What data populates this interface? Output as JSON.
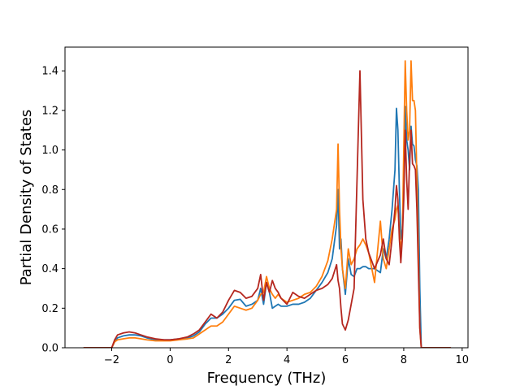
{
  "chart_data": {
    "type": "line",
    "title": "",
    "xlabel": "Frequency (THz)",
    "ylabel": "Partial Density of States",
    "xlim": [
      -3.6,
      10.2
    ],
    "ylim": [
      0.0,
      1.52
    ],
    "xticks": [
      -2,
      0,
      2,
      4,
      6,
      8,
      10
    ],
    "xtick_labels": [
      "−2",
      "0",
      "2",
      "4",
      "6",
      "8",
      "10"
    ],
    "yticks": [
      0.0,
      0.2,
      0.4,
      0.6,
      0.8,
      1.0,
      1.2,
      1.4
    ],
    "ytick_labels": [
      "0.0",
      "0.2",
      "0.4",
      "0.6",
      "0.8",
      "1.0",
      "1.2",
      "1.4"
    ],
    "grid": false,
    "legend": "none",
    "series": [
      {
        "color": "#1f77b4",
        "x": [
          -2.95,
          -2.0,
          -1.9,
          -1.8,
          -1.6,
          -1.4,
          -1.2,
          -1.0,
          -0.8,
          -0.5,
          -0.2,
          0.0,
          0.3,
          0.6,
          0.8,
          1.0,
          1.2,
          1.4,
          1.6,
          1.8,
          2.0,
          2.2,
          2.4,
          2.6,
          2.8,
          3.0,
          3.1,
          3.2,
          3.3,
          3.4,
          3.5,
          3.6,
          3.7,
          3.8,
          4.0,
          4.2,
          4.4,
          4.6,
          4.8,
          5.0,
          5.2,
          5.4,
          5.55,
          5.7,
          5.75,
          5.8,
          5.85,
          5.9,
          6.0,
          6.1,
          6.2,
          6.3,
          6.4,
          6.5,
          6.6,
          6.7,
          6.8,
          7.0,
          7.2,
          7.3,
          7.4,
          7.5,
          7.6,
          7.7,
          7.75,
          7.8,
          7.85,
          7.9,
          7.95,
          8.0,
          8.05,
          8.1,
          8.15,
          8.2,
          8.25,
          8.3,
          8.35,
          8.4,
          8.45,
          8.5,
          8.55,
          8.6,
          8.7,
          9.0,
          9.6
        ],
        "y": [
          0.0,
          0.0,
          0.03,
          0.05,
          0.06,
          0.065,
          0.065,
          0.06,
          0.05,
          0.04,
          0.04,
          0.04,
          0.045,
          0.05,
          0.06,
          0.08,
          0.12,
          0.15,
          0.15,
          0.17,
          0.2,
          0.24,
          0.245,
          0.21,
          0.22,
          0.24,
          0.3,
          0.22,
          0.33,
          0.28,
          0.2,
          0.21,
          0.22,
          0.21,
          0.21,
          0.22,
          0.22,
          0.23,
          0.25,
          0.29,
          0.33,
          0.38,
          0.45,
          0.62,
          0.8,
          0.5,
          0.55,
          0.4,
          0.27,
          0.45,
          0.37,
          0.36,
          0.4,
          0.4,
          0.41,
          0.41,
          0.4,
          0.4,
          0.38,
          0.5,
          0.45,
          0.55,
          0.7,
          0.9,
          1.21,
          1.1,
          0.8,
          0.55,
          0.6,
          0.8,
          1.22,
          1.05,
          1.0,
          0.9,
          1.12,
          1.03,
          1.02,
          0.95,
          0.92,
          0.8,
          0.3,
          0.0,
          0.0,
          0.0,
          0.0
        ]
      },
      {
        "color": "#ff7f0e",
        "x": [
          -2.95,
          -2.0,
          -1.9,
          -1.8,
          -1.6,
          -1.4,
          -1.2,
          -1.0,
          -0.8,
          -0.5,
          -0.2,
          0.0,
          0.3,
          0.6,
          0.8,
          1.0,
          1.2,
          1.4,
          1.6,
          1.8,
          2.0,
          2.2,
          2.4,
          2.6,
          2.8,
          3.0,
          3.1,
          3.2,
          3.3,
          3.4,
          3.5,
          3.6,
          3.7,
          3.8,
          4.0,
          4.2,
          4.4,
          4.6,
          4.8,
          5.0,
          5.2,
          5.4,
          5.55,
          5.7,
          5.75,
          5.8,
          5.85,
          5.9,
          6.0,
          6.1,
          6.2,
          6.3,
          6.4,
          6.5,
          6.6,
          6.7,
          6.8,
          7.0,
          7.2,
          7.3,
          7.4,
          7.5,
          7.6,
          7.7,
          7.75,
          7.8,
          7.85,
          7.9,
          7.95,
          8.0,
          8.05,
          8.1,
          8.15,
          8.2,
          8.25,
          8.3,
          8.35,
          8.4,
          8.45,
          8.5,
          8.55,
          8.6,
          8.7,
          9.0,
          9.6
        ],
        "y": [
          0.0,
          0.0,
          0.03,
          0.04,
          0.045,
          0.05,
          0.05,
          0.045,
          0.04,
          0.035,
          0.035,
          0.035,
          0.04,
          0.045,
          0.05,
          0.07,
          0.09,
          0.11,
          0.11,
          0.13,
          0.17,
          0.21,
          0.2,
          0.19,
          0.2,
          0.24,
          0.27,
          0.28,
          0.36,
          0.3,
          0.27,
          0.25,
          0.27,
          0.25,
          0.23,
          0.24,
          0.25,
          0.27,
          0.28,
          0.31,
          0.36,
          0.44,
          0.55,
          0.7,
          1.03,
          0.7,
          0.5,
          0.4,
          0.3,
          0.5,
          0.42,
          0.45,
          0.5,
          0.52,
          0.55,
          0.52,
          0.48,
          0.33,
          0.64,
          0.45,
          0.4,
          0.5,
          0.6,
          0.65,
          0.7,
          0.72,
          0.6,
          0.5,
          0.55,
          1.0,
          1.45,
          1.2,
          1.05,
          1.1,
          1.45,
          1.25,
          1.25,
          1.2,
          0.85,
          0.5,
          0.1,
          0.0,
          0.0,
          0.0,
          0.0
        ]
      },
      {
        "color": "#b5271f",
        "x": [
          -2.95,
          -2.0,
          -1.9,
          -1.8,
          -1.6,
          -1.4,
          -1.2,
          -1.0,
          -0.8,
          -0.5,
          -0.2,
          0.0,
          0.3,
          0.6,
          0.8,
          1.0,
          1.2,
          1.4,
          1.6,
          1.8,
          2.0,
          2.2,
          2.4,
          2.6,
          2.8,
          3.0,
          3.1,
          3.2,
          3.3,
          3.4,
          3.5,
          3.6,
          3.7,
          3.8,
          4.0,
          4.2,
          4.4,
          4.6,
          4.8,
          5.0,
          5.2,
          5.4,
          5.55,
          5.7,
          5.75,
          5.8,
          5.85,
          5.9,
          6.0,
          6.1,
          6.2,
          6.3,
          6.4,
          6.5,
          6.6,
          6.7,
          6.8,
          7.0,
          7.2,
          7.3,
          7.4,
          7.5,
          7.6,
          7.7,
          7.75,
          7.8,
          7.85,
          7.9,
          7.95,
          8.0,
          8.05,
          8.1,
          8.15,
          8.2,
          8.25,
          8.3,
          8.35,
          8.4,
          8.45,
          8.5,
          8.55,
          8.6,
          8.7,
          9.0,
          9.6
        ],
        "y": [
          0.0,
          0.0,
          0.04,
          0.065,
          0.075,
          0.08,
          0.075,
          0.065,
          0.055,
          0.045,
          0.04,
          0.04,
          0.045,
          0.055,
          0.07,
          0.09,
          0.13,
          0.17,
          0.15,
          0.18,
          0.24,
          0.29,
          0.28,
          0.25,
          0.26,
          0.3,
          0.37,
          0.24,
          0.33,
          0.28,
          0.34,
          0.3,
          0.28,
          0.25,
          0.22,
          0.28,
          0.26,
          0.25,
          0.27,
          0.29,
          0.3,
          0.32,
          0.35,
          0.42,
          0.34,
          0.3,
          0.2,
          0.12,
          0.09,
          0.14,
          0.22,
          0.3,
          0.85,
          1.4,
          0.75,
          0.55,
          0.48,
          0.4,
          0.47,
          0.55,
          0.45,
          0.42,
          0.55,
          0.7,
          0.82,
          0.75,
          0.55,
          0.43,
          0.55,
          0.75,
          1.1,
          0.85,
          0.7,
          0.95,
          1.1,
          0.93,
          0.92,
          0.9,
          0.7,
          0.4,
          0.1,
          0.0,
          0.0,
          0.0,
          0.0
        ]
      }
    ]
  }
}
